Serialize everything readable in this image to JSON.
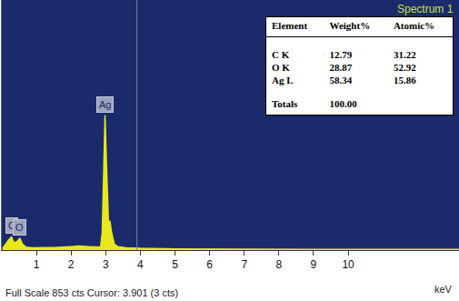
{
  "chart_data": {
    "type": "area",
    "title": "Spectrum 1",
    "x_label": "keV",
    "footer": "Full Scale 853 cts Cursor: 3.901 (3 cts)",
    "x": [
      0.02,
      0.1,
      0.2,
      0.28,
      0.35,
      0.45,
      0.52,
      0.6,
      0.7,
      0.9,
      1.2,
      1.6,
      2.0,
      2.2,
      2.5,
      2.7,
      2.85,
      2.9,
      2.95,
      2.98,
      3.02,
      3.08,
      3.12,
      3.17,
      3.25,
      3.35,
      3.6,
      4.0,
      5.0,
      6.0,
      7.0,
      8.0,
      9.0,
      10.0,
      11.0,
      12.0,
      13.2
    ],
    "values": [
      5,
      20,
      35,
      45,
      25,
      30,
      40,
      20,
      10,
      8,
      8,
      9,
      12,
      14,
      12,
      10,
      10,
      60,
      300,
      460,
      300,
      90,
      100,
      60,
      20,
      12,
      8,
      6,
      4,
      3,
      3,
      2,
      2,
      2,
      2,
      2,
      2
    ],
    "color": "#e8e81c",
    "xlim": [
      0,
      13.2
    ],
    "xticks": [
      1,
      2,
      3,
      4,
      5,
      6,
      7,
      8,
      9,
      10
    ],
    "ylim": [
      0,
      853
    ],
    "tick_labels": "x",
    "grid": false,
    "cursor": 3.901,
    "annotations": [
      {
        "text": "C",
        "x": 0.28
      },
      {
        "text": "O",
        "x": 0.52
      },
      {
        "text": "Ag",
        "x": 2.98
      }
    ],
    "table": {
      "header": [
        "Element",
        "Weight%",
        "Atomic%"
      ],
      "rows": [
        [
          "C K",
          "12.79",
          "31.22"
        ],
        [
          "O K",
          "28.87",
          "52.92"
        ],
        [
          "Ag L",
          "58.34",
          "15.86"
        ]
      ],
      "totals": [
        "Totals",
        "100.00"
      ]
    }
  }
}
